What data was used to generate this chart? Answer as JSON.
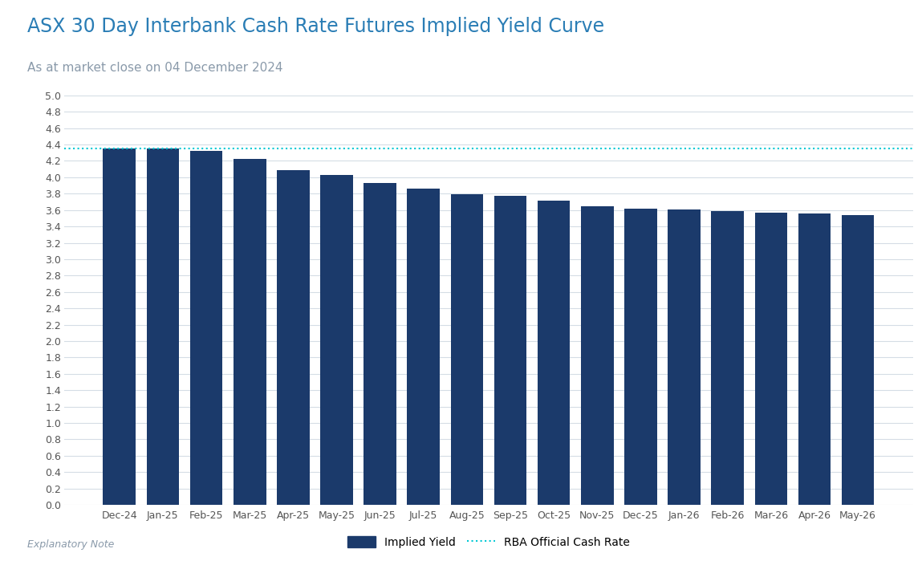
{
  "title": "ASX 30 Day Interbank Cash Rate Futures Implied Yield Curve",
  "subtitle": "As at market close on 04 December 2024",
  "categories": [
    "Dec-24",
    "Jan-25",
    "Feb-25",
    "Mar-25",
    "Apr-25",
    "May-25",
    "Jun-25",
    "Jul-25",
    "Aug-25",
    "Sep-25",
    "Oct-25",
    "Nov-25",
    "Dec-25",
    "Jan-26",
    "Feb-26",
    "Mar-26",
    "Apr-26",
    "May-26"
  ],
  "values": [
    4.35,
    4.35,
    4.32,
    4.22,
    4.09,
    4.03,
    3.93,
    3.86,
    3.79,
    3.77,
    3.71,
    3.65,
    3.62,
    3.61,
    3.59,
    3.57,
    3.56,
    3.54
  ],
  "rba_rate": 4.35,
  "bar_color": "#1b3a6b",
  "rba_line_color": "#00c8d4",
  "title_color": "#2a7db5",
  "subtitle_color": "#8a9aaa",
  "background_color": "#ffffff",
  "ylim": [
    0.0,
    5.0
  ],
  "yticks": [
    0.0,
    0.2,
    0.4,
    0.6,
    0.8,
    1.0,
    1.2,
    1.4,
    1.6,
    1.8,
    2.0,
    2.2,
    2.4,
    2.6,
    2.8,
    3.0,
    3.2,
    3.4,
    3.6,
    3.8,
    4.0,
    4.2,
    4.4,
    4.6,
    4.8,
    5.0
  ],
  "legend_implied_yield": "Implied Yield",
  "legend_rba": "RBA Official Cash Rate",
  "grid_color": "#d5dde5",
  "title_fontsize": 17,
  "subtitle_fontsize": 11,
  "tick_fontsize": 9,
  "legend_fontsize": 10,
  "bar_width": 0.75,
  "footnote": "Explanatory Note"
}
